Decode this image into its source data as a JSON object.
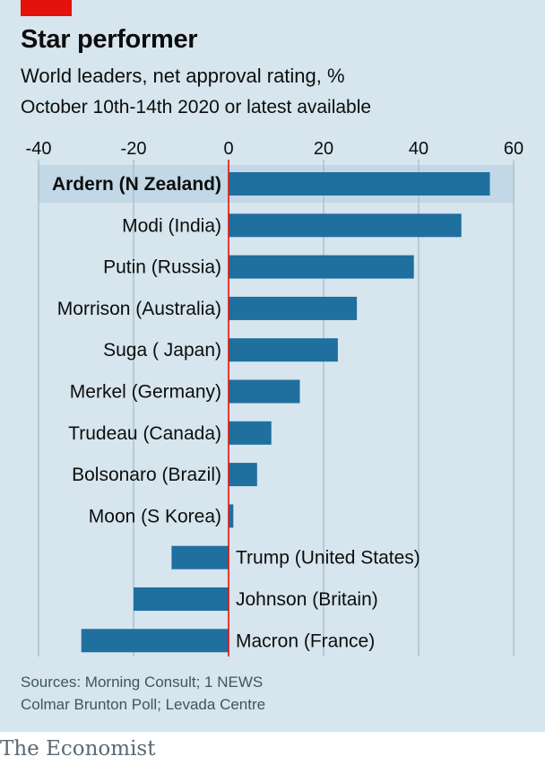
{
  "header": {
    "title": "Star performer",
    "subtitle": "World leaders, net approval rating, %",
    "date_note": "October 10th-14th 2020 or latest available"
  },
  "colors": {
    "background": "#d6e5ee",
    "bar": "#1f6f9f",
    "highlight_band": "#c2d8e6",
    "zero_line": "#e3120b",
    "grid": "#a9c0cd",
    "tag": "#e3120b"
  },
  "chart_data": {
    "type": "bar",
    "orientation": "horizontal",
    "categories": [
      "Ardern (N Zealand)",
      "Modi (India)",
      "Putin (Russia)",
      "Morrison (Australia)",
      "Suga ( Japan)",
      "Merkel (Germany)",
      "Trudeau (Canada)",
      "Bolsonaro (Brazil)",
      "Moon (S Korea)",
      "Trump (United States)",
      "Johnson (Britain)",
      "Macron (France)"
    ],
    "values": [
      55,
      49,
      39,
      27,
      23,
      15,
      9,
      6,
      1,
      -12,
      -20,
      -31
    ],
    "highlighted": "Ardern (N Zealand)",
    "xlim": [
      -40,
      60
    ],
    "x_ticks": [
      -40,
      -20,
      0,
      20,
      40,
      60
    ],
    "grid": true,
    "title": "Star performer",
    "xlabel": "",
    "ylabel": ""
  },
  "source": {
    "line1": "Sources: Morning Consult; 1 NEWS",
    "line2": "Colmar Brunton Poll; Levada Centre"
  },
  "footer": {
    "brand": "The Economist"
  }
}
